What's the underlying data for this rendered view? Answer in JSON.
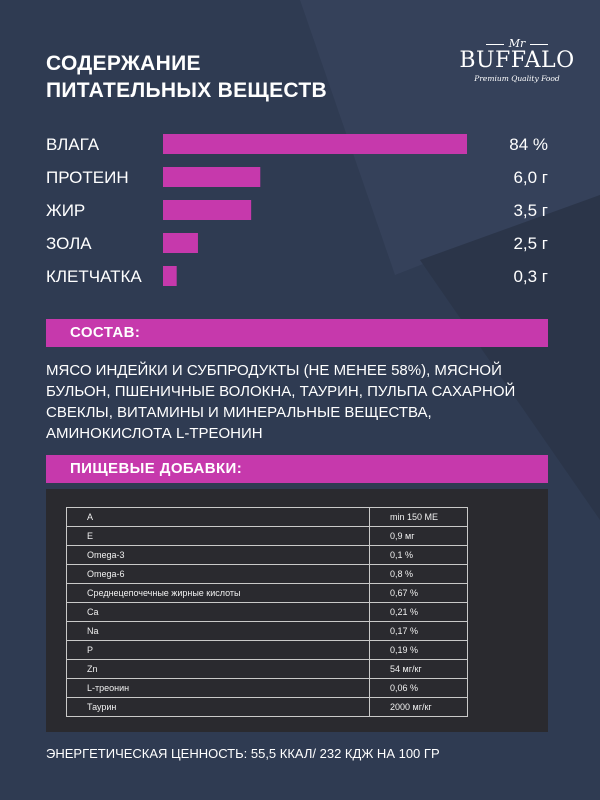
{
  "header": {
    "title_lines": [
      "СОДЕРЖАНИЕ",
      "ПИТАТЕЛЬНЫХ ВЕЩЕСТВ"
    ]
  },
  "logo": {
    "mr": "Mr",
    "name": "BUFFALO",
    "tagline": "Premium Quality Food"
  },
  "chart_data": {
    "type": "bar",
    "categories": [
      "ВЛАГА",
      "ПРОТЕИН",
      "ЖИР",
      "ЗОЛА",
      "КЛЕТЧАТКА"
    ],
    "values": [
      84,
      6.0,
      3.5,
      2.5,
      0.3
    ],
    "value_labels": [
      "84 %",
      "6,0 г",
      "3,5 г",
      "2,5 г",
      "0,3 г"
    ],
    "bar_fill_fraction": [
      1.0,
      0.32,
      0.29,
      0.115,
      0.045
    ],
    "title": "СОДЕРЖАНИЕ ПИТАТЕЛЬНЫХ ВЕЩЕСТВ",
    "orientation": "horizontal",
    "bar_color": "#c639ac",
    "grid": false
  },
  "composition": {
    "heading": "СОСТАВ:",
    "text": "МЯСО ИНДЕЙКИ И СУБПРОДУКТЫ (НЕ МЕНЕЕ 58%), МЯСНОЙ БУЛЬОН, ПШЕНИЧНЫЕ ВОЛОКНА, ТАУРИН, ПУЛЬПА САХАРНОЙ СВЕКЛЫ, ВИТАМИНЫ И МИНЕРАЛЬНЫЕ ВЕЩЕСТВА, АМИНОКИСЛОТА L-ТРЕОНИН"
  },
  "additives": {
    "heading": "ПИЩЕВЫЕ ДОБАВКИ:",
    "rows": [
      {
        "name": "A",
        "value": "min 150 МЕ"
      },
      {
        "name": "E",
        "value": "0,9 мг"
      },
      {
        "name": "Omega-3",
        "value": "0,1 %"
      },
      {
        "name": "Omega-6",
        "value": "0,8 %"
      },
      {
        "name": "Среднецепочечные жирные кислоты",
        "value": "0,67 %"
      },
      {
        "name": "Ca",
        "value": "0,21 %"
      },
      {
        "name": "Na",
        "value": "0,17 %"
      },
      {
        "name": "P",
        "value": "0,19 %"
      },
      {
        "name": "Zn",
        "value": "54 мг/кг"
      },
      {
        "name": "L-треонин",
        "value": "0,06 %"
      },
      {
        "name": "Таурин",
        "value": "2000 мг/кг"
      }
    ]
  },
  "footer": {
    "energy": "ЭНЕРГЕТИЧЕСКАЯ ЦЕННОСТЬ: 55,5 ККАЛ/ 232 КДЖ НА 100 ГР"
  },
  "colors": {
    "background": "#2f3b52",
    "accent": "#c639ac",
    "table_background": "#2a2a2f"
  }
}
